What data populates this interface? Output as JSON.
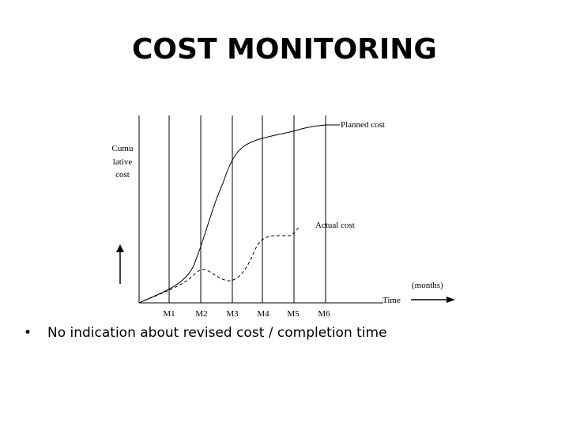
{
  "slide": {
    "title": "COST MONITORING",
    "bullet_symbol": "•",
    "bullet_text": "No indication about revised cost / completion time"
  },
  "diagram": {
    "y_axis_label_lines": [
      "Cumu",
      "lative",
      "cost"
    ],
    "x_axis_label": "Time",
    "x_unit": "(months)",
    "months": [
      "M1",
      "M2",
      "M3",
      "M4",
      "M5",
      "M6"
    ],
    "planned_label": "Planned cost",
    "actual_label": "Actual cost"
  }
}
